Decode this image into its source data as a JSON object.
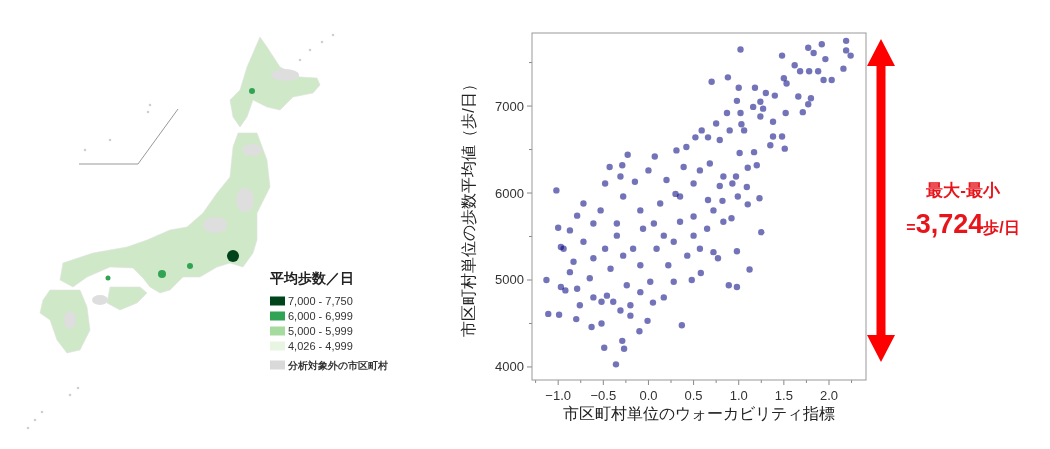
{
  "chart_data": [
    {
      "type": "other",
      "legend_title": "平均歩数／日",
      "categories": [
        "7,000 - 7,750",
        "6,000 - 6,999",
        "5,000 - 5,999",
        "4,026 - 4,999",
        "分析対象外の市区町村"
      ],
      "colors": [
        "#00441b",
        "#31a354",
        "#a6dba0",
        "#e8f5e2",
        "#d9d9d9"
      ]
    },
    {
      "type": "scatter",
      "xlabel": "市区町村単位のウォーカビリティ指標",
      "ylabel": "市区町村単位の歩数平均値（歩/日）",
      "xlim": [
        -1.29,
        2.41
      ],
      "ylim": [
        3850,
        7840
      ],
      "xticks": [
        {
          "value": -1.25,
          "label": null
        },
        {
          "value": -1,
          "label": "−1.0"
        },
        {
          "value": -0.75,
          "label": null
        },
        {
          "value": -0.5,
          "label": "−0.5"
        },
        {
          "value": -0.25,
          "label": null
        },
        {
          "value": 0,
          "label": "0.0"
        },
        {
          "value": 0.25,
          "label": null
        },
        {
          "value": 0.5,
          "label": "0.5"
        },
        {
          "value": 0.75,
          "label": null
        },
        {
          "value": 1,
          "label": "1.0"
        },
        {
          "value": 1.25,
          "label": null
        },
        {
          "value": 1.5,
          "label": "1.5"
        },
        {
          "value": 1.75,
          "label": null
        },
        {
          "value": 2,
          "label": "2.0"
        },
        {
          "value": 2.25,
          "label": null
        }
      ],
      "yticks": [
        4000,
        {
          "value": 4500,
          "label": null
        },
        5000,
        {
          "value": 5500,
          "label": null
        },
        6000,
        {
          "value": 6500,
          "label": null
        },
        7000,
        {
          "value": 7500,
          "label": null
        }
      ],
      "marker": "circle",
      "series": [
        {
          "color": "#000080",
          "x": [
            -1.02,
            1.02,
            2.19,
            1.92,
            1.77,
            2.24,
            2.19,
            1.48,
            1.83,
            1.96,
            2.16,
            1.62,
            1.68,
            1.78,
            1.88,
            2.03,
            1.94,
            0.88,
            0.7,
            1.5,
            1.53,
            1.0,
            1.18,
            1.66,
            1.8,
            1.3,
            1.4,
            0.98,
            1.24,
            1.27,
            1.52,
            1.71,
            1.77,
            0.87,
            0.75,
            0.59,
            1.03,
            1.38,
            1.48,
            1.51,
            1.35,
            1.17,
            1.2,
            1.1,
            1.01,
            0.52,
            0.42,
            0.31,
            0.07,
            -0.23,
            -0.43,
            -0.29,
            1.23,
            1.1,
            0.97,
            0.93,
            0.82,
            0.83,
            0.99,
            -1.13,
            -1.11,
            -0.99,
            -0.8,
            -0.63,
            -0.52,
            -0.49,
            -0.36,
            -0.29,
            -0.27,
            -0.1,
            -0.01,
            0.37,
            1.25,
            1.12,
            0.98,
            0.89,
            0.98,
            0.77,
            0.92,
            0.58,
            0.48,
            0.17,
            0.05,
            -0.2,
            -0.2,
            -0.31,
            -0.39,
            -0.52,
            -0.61,
            -0.76,
            -0.92,
            -0.97,
            -1.0,
            -0.97,
            -0.87,
            -0.94,
            -0.83,
            -0.72,
            -0.65,
            -0.61,
            -0.48,
            -0.42,
            -0.35,
            -0.28,
            -0.24,
            -0.17,
            -0.09,
            -0.06,
            0.02,
            0.09,
            0.17,
            0.22,
            0.28,
            0.35,
            0.43,
            0.5,
            0.57,
            0.65,
            0.72,
            -0.79,
            -0.46,
            -0.09,
            0.28,
            -0.87,
            -0.09,
            0.13,
            0.35,
            0.5,
            0.2,
            -0.28,
            -0.53,
            -0.61,
            -0.35,
            0.06,
            0.5,
            0.72,
            0.57,
            0.83,
            1.09,
            1.38,
            1.24,
            1.02,
            1.16,
            0.9,
            1.06,
            0.79,
            0.39,
            0.68,
            -0.79,
            -0.72,
            -0.48,
            -0.31,
            -0.15,
            0.0,
            0.66,
            0.79,
            0.66,
            0.3
          ],
          "values": [
            6030,
            7650,
            7750,
            7710,
            7670,
            7580,
            7640,
            7580,
            7610,
            7540,
            7430,
            7470,
            7400,
            7400,
            7400,
            7300,
            7300,
            7330,
            7280,
            7320,
            7260,
            7210,
            7210,
            7110,
            7090,
            7150,
            7120,
            7060,
            7050,
            6970,
            6920,
            6930,
            7020,
            6920,
            6800,
            6720,
            6790,
            6820,
            6650,
            6510,
            6550,
            6470,
            6320,
            6290,
            6460,
            6640,
            6530,
            6490,
            6420,
            6440,
            6300,
            6320,
            5940,
            5870,
            6190,
            6110,
            5910,
            5670,
            5960,
            5000,
            4610,
            4600,
            4550,
            4460,
            4500,
            4220,
            4030,
            4300,
            4210,
            4410,
            4530,
            4480,
            5550,
            5120,
            5330,
            4940,
            4920,
            5250,
            5710,
            5080,
            5000,
            4800,
            4740,
            4710,
            4590,
            4650,
            4750,
            4750,
            4800,
            4710,
            4880,
            4920,
            5600,
            5380,
            5570,
            5360,
            5210,
            5440,
            5020,
            5250,
            5360,
            5130,
            5510,
            5280,
            4940,
            5360,
            5170,
            5590,
            4980,
            5360,
            5510,
            5170,
            5440,
            5670,
            5280,
            5510,
            5360,
            5590,
            5320,
            4900,
            4820,
            4860,
            4980,
            5090,
            5800,
            5880,
            5960,
            6110,
            6150,
            5960,
            5800,
            5650,
            5650,
            5650,
            5730,
            5800,
            6260,
            6190,
            6070,
            6650,
            6880,
            6920,
            6990,
            6720,
            6720,
            6610,
            6300,
            6340,
            5740,
            5880,
            6110,
            6190,
            6130,
            6260,
            6640,
            6080,
            5920,
            5990
          ]
        }
      ],
      "annotations": [
        "最大-最小",
        "=3,724歩/日"
      ]
    }
  ]
}
